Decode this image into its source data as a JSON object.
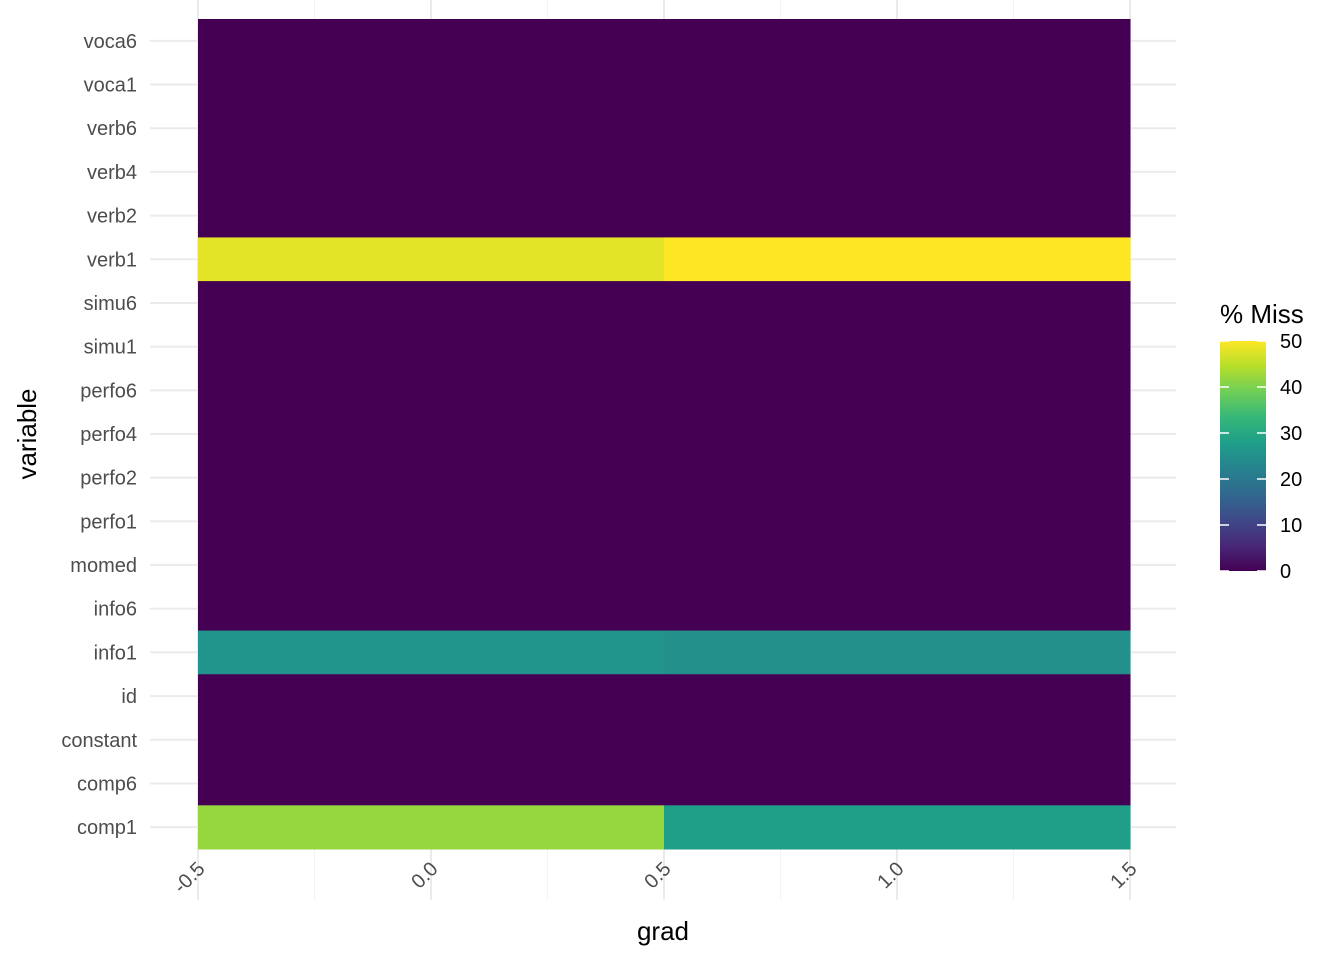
{
  "chart_data": {
    "type": "heatmap",
    "title": "",
    "xlabel": "grad",
    "ylabel": "variable",
    "x_columns": [
      0,
      1
    ],
    "xlim": [
      -0.5,
      1.5
    ],
    "x_ticks": [
      "-0.5",
      "0.0",
      "0.5",
      "1.0",
      "1.5"
    ],
    "x_tick_values": [
      -0.5,
      0,
      0.5,
      1,
      1.5
    ],
    "categories": [
      "voca6",
      "voca1",
      "verb6",
      "verb4",
      "verb2",
      "verb1",
      "simu6",
      "simu1",
      "perfo6",
      "perfo4",
      "perfo2",
      "perfo1",
      "momed",
      "info6",
      "info1",
      "id",
      "constant",
      "comp6",
      "comp1"
    ],
    "values": [
      [
        0,
        0
      ],
      [
        0,
        0
      ],
      [
        0,
        0
      ],
      [
        0,
        0
      ],
      [
        0,
        0
      ],
      [
        48,
        50
      ],
      [
        0,
        0
      ],
      [
        0,
        0
      ],
      [
        0,
        0
      ],
      [
        0,
        0
      ],
      [
        0,
        0
      ],
      [
        0,
        0
      ],
      [
        0,
        0
      ],
      [
        0,
        0
      ],
      [
        26,
        25
      ],
      [
        0,
        0
      ],
      [
        0,
        0
      ],
      [
        0,
        0
      ],
      [
        42,
        28
      ]
    ],
    "legend": {
      "title": "% Miss",
      "range": [
        0,
        50
      ],
      "ticks": [
        "50",
        "40",
        "30",
        "20",
        "10",
        "0"
      ],
      "tick_values": [
        50,
        40,
        30,
        20,
        10,
        0
      ],
      "colormap": "viridis",
      "placement": "right"
    },
    "grid": true
  }
}
